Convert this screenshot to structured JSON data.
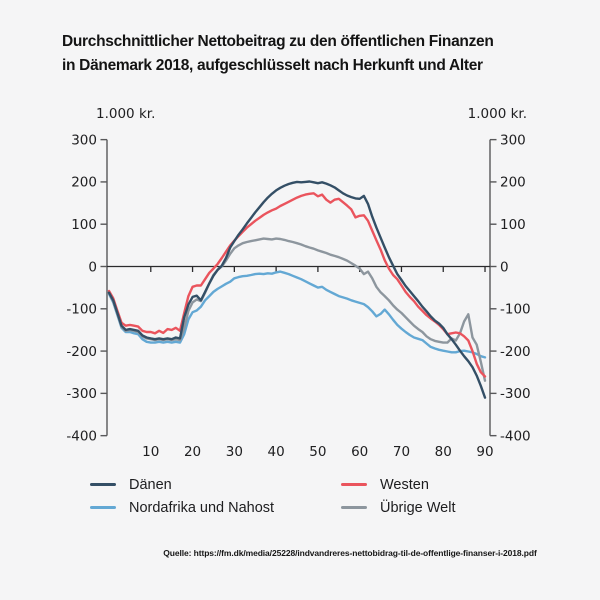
{
  "header": {
    "title_line1": "Durchschnittlicher Nettobeitrag zu den öffentlichen Finanzen",
    "title_line2": "in Dänemark 2018, aufgeschlüsselt nach Herkunft und Alter"
  },
  "style": {
    "background": "#f5f5f6",
    "axis_color": "#58585a",
    "zero_line_color": "#2b2b2d",
    "text_color": "#202022"
  },
  "chart_data": {
    "type": "line",
    "title": "Durchschnittlicher Nettobeitrag zu den öffentlichen Finanzen in Dänemark 2018, aufgeschlüsselt nach Herkunft und Alter",
    "y_axis_label_left": "1.000 kr.",
    "y_axis_label_right": "1.000 kr.",
    "xlabel": "",
    "ylabel": "1.000 kr.",
    "ylim": [
      -400,
      300
    ],
    "y_ticks": [
      300,
      200,
      100,
      0,
      -100,
      -200,
      -300,
      -400
    ],
    "x_ticks": [
      10,
      20,
      30,
      40,
      50,
      60,
      70,
      80,
      90
    ],
    "age_start": 0,
    "age_step": 1,
    "grid": false,
    "legend_position": "bottom",
    "series": [
      {
        "name": "Dänen",
        "color": "#344f66",
        "values": [
          -62,
          -80,
          -110,
          -140,
          -150,
          -148,
          -150,
          -152,
          -163,
          -168,
          -170,
          -172,
          -170,
          -172,
          -170,
          -172,
          -168,
          -170,
          -120,
          -90,
          -72,
          -69,
          -80,
          -60,
          -40,
          -22,
          -8,
          2,
          20,
          45,
          60,
          75,
          88,
          102,
          115,
          128,
          140,
          152,
          163,
          172,
          180,
          186,
          191,
          195,
          198,
          200,
          199,
          200,
          201,
          199,
          197,
          199,
          196,
          192,
          187,
          180,
          173,
          168,
          164,
          161,
          160,
          167,
          148,
          118,
          92,
          68,
          45,
          22,
          2,
          -18,
          -32,
          -46,
          -58,
          -70,
          -82,
          -95,
          -106,
          -118,
          -128,
          -135,
          -145,
          -160,
          -172,
          -185,
          -199,
          -212,
          -224,
          -238,
          -258,
          -282,
          -310
        ]
      },
      {
        "name": "Westen",
        "color": "#ea545d",
        "values": [
          -58,
          -75,
          -105,
          -133,
          -140,
          -138,
          -140,
          -142,
          -152,
          -155,
          -155,
          -158,
          -152,
          -157,
          -148,
          -150,
          -145,
          -152,
          -110,
          -70,
          -48,
          -45,
          -45,
          -30,
          -15,
          -5,
          6,
          20,
          35,
          50,
          61,
          72,
          82,
          92,
          100,
          108,
          115,
          122,
          128,
          133,
          137,
          143,
          148,
          153,
          158,
          163,
          167,
          170,
          172,
          173,
          166,
          170,
          158,
          151,
          158,
          160,
          152,
          144,
          135,
          116,
          120,
          121,
          108,
          85,
          62,
          40,
          15,
          -5,
          -20,
          -30,
          -45,
          -60,
          -72,
          -82,
          -95,
          -105,
          -115,
          -123,
          -130,
          -138,
          -148,
          -160,
          -158,
          -156,
          -158,
          -165,
          -175,
          -200,
          -230,
          -250,
          -260
        ]
      },
      {
        "name": "Nordafrika und Nahost",
        "color": "#63a8d4",
        "values": [
          -65,
          -85,
          -115,
          -145,
          -155,
          -155,
          -158,
          -160,
          -172,
          -178,
          -180,
          -180,
          -178,
          -180,
          -178,
          -180,
          -178,
          -180,
          -160,
          -125,
          -108,
          -104,
          -95,
          -80,
          -70,
          -60,
          -53,
          -47,
          -41,
          -36,
          -28,
          -25,
          -23,
          -22,
          -20,
          -18,
          -17,
          -18,
          -16,
          -17,
          -14,
          -12,
          -15,
          -18,
          -22,
          -26,
          -30,
          -35,
          -40,
          -45,
          -50,
          -48,
          -55,
          -60,
          -65,
          -70,
          -73,
          -76,
          -80,
          -83,
          -86,
          -89,
          -96,
          -106,
          -118,
          -112,
          -102,
          -113,
          -126,
          -138,
          -147,
          -155,
          -162,
          -168,
          -171,
          -174,
          -182,
          -190,
          -194,
          -197,
          -199,
          -201,
          -203,
          -203,
          -200,
          -199,
          -201,
          -203,
          -207,
          -212,
          -215
        ]
      },
      {
        "name": "Übrige Welt",
        "color": "#8d969e",
        "values": [
          -63,
          -82,
          -112,
          -142,
          -152,
          -150,
          -152,
          -155,
          -165,
          -170,
          -172,
          -174,
          -172,
          -174,
          -172,
          -174,
          -172,
          -174,
          -145,
          -105,
          -85,
          -78,
          -82,
          -62,
          -40,
          -20,
          -8,
          0,
          14,
          30,
          43,
          50,
          55,
          58,
          60,
          62,
          64,
          66,
          65,
          64,
          66,
          65,
          63,
          60,
          58,
          55,
          52,
          48,
          45,
          42,
          38,
          35,
          32,
          28,
          25,
          22,
          18,
          14,
          8,
          2,
          -5,
          -18,
          -12,
          -28,
          -48,
          -61,
          -70,
          -80,
          -92,
          -102,
          -110,
          -120,
          -130,
          -140,
          -148,
          -155,
          -165,
          -172,
          -176,
          -178,
          -180,
          -180,
          -170,
          -175,
          -158,
          -130,
          -113,
          -168,
          -185,
          -225,
          -270
        ]
      }
    ]
  },
  "footer": {
    "source": "Quelle: https://fm.dk/media/25228/indvandreres-nettobidrag-til-de-offentlige-finanser-i-2018.pdf"
  }
}
